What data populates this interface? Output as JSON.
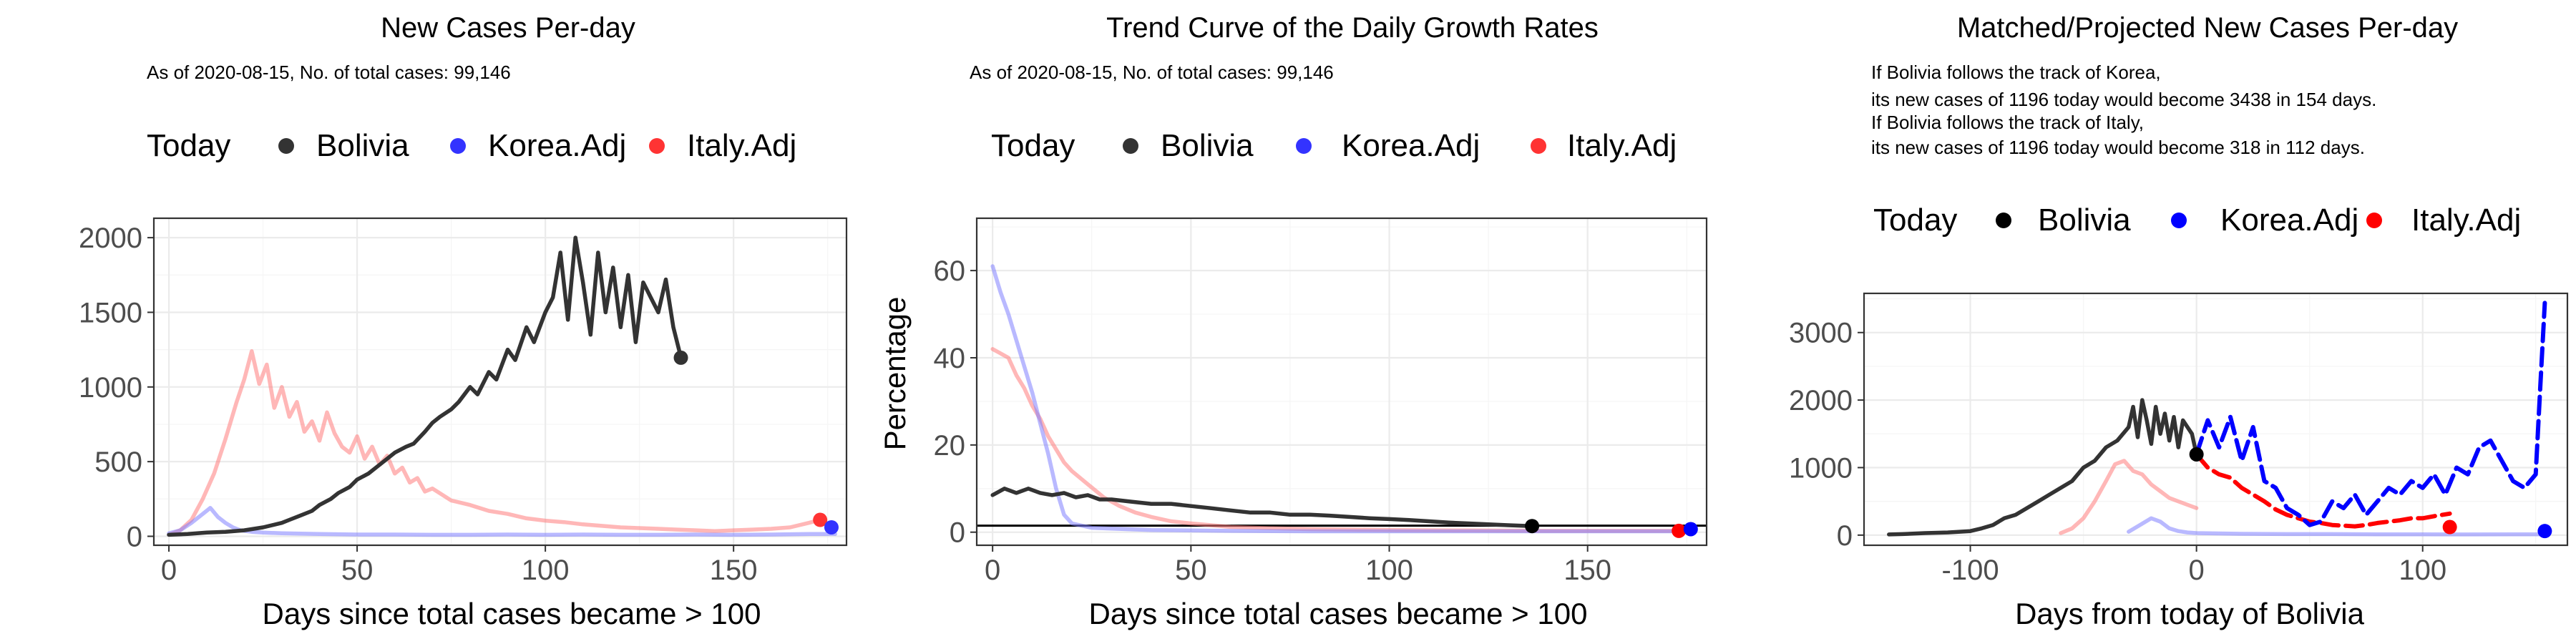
{
  "chart_data": [
    {
      "type": "line",
      "title": "New Cases Per-day",
      "subtitle": "As of 2020-08-15, No. of total cases: 99,146",
      "xlabel": "Days since total cases became > 100",
      "ylabel": "",
      "xlim": [
        -4,
        180
      ],
      "ylim": [
        -60,
        2130
      ],
      "xticks": [
        0,
        50,
        100,
        150
      ],
      "xtick_labels": [
        "0",
        "50",
        "100",
        "150"
      ],
      "yticks": [
        0,
        500,
        1000,
        1500,
        2000
      ],
      "ytick_labels": [
        "0",
        "500",
        "1000",
        "1500",
        "2000"
      ],
      "grid": true,
      "legend": {
        "position": "top",
        "title": "Today",
        "entries": [
          {
            "label": "Bolivia",
            "color": "#333333"
          },
          {
            "label": "Korea.Adj",
            "color": "#3333ff"
          },
          {
            "label": "Italy.Adj",
            "color": "#ff3333"
          }
        ]
      },
      "series": [
        {
          "name": "Italy.Adj",
          "color": "#ff7b7b",
          "opacity": 0.55,
          "x": [
            0,
            3,
            6,
            9,
            12,
            15,
            18,
            20,
            22,
            24,
            26,
            28,
            30,
            32,
            34,
            36,
            38,
            40,
            42,
            44,
            46,
            48,
            50,
            52,
            54,
            56,
            58,
            60,
            62,
            64,
            66,
            68,
            70,
            75,
            80,
            85,
            90,
            95,
            100,
            105,
            110,
            115,
            120,
            125,
            130,
            135,
            140,
            145,
            150,
            155,
            160,
            165,
            170,
            173
          ],
          "y": [
            10,
            40,
            110,
            250,
            420,
            650,
            900,
            1050,
            1240,
            1020,
            1150,
            860,
            1000,
            800,
            900,
            700,
            770,
            640,
            830,
            690,
            600,
            560,
            670,
            520,
            600,
            480,
            540,
            420,
            460,
            360,
            390,
            300,
            320,
            240,
            210,
            170,
            150,
            120,
            105,
            95,
            80,
            70,
            60,
            55,
            50,
            45,
            40,
            35,
            40,
            45,
            50,
            60,
            90,
            110
          ]
        },
        {
          "name": "Korea.Adj",
          "color": "#8080ff",
          "opacity": 0.55,
          "x": [
            0,
            3,
            6,
            9,
            11,
            13,
            15,
            17,
            19,
            22,
            25,
            30,
            40,
            50,
            60,
            70,
            80,
            90,
            100,
            110,
            120,
            130,
            140,
            150,
            160,
            170,
            177
          ],
          "y": [
            20,
            40,
            90,
            150,
            190,
            130,
            90,
            60,
            40,
            30,
            25,
            20,
            15,
            12,
            12,
            10,
            10,
            12,
            10,
            12,
            10,
            10,
            12,
            10,
            12,
            15,
            15
          ]
        },
        {
          "name": "Bolivia",
          "color": "#333333",
          "opacity": 1,
          "x": [
            0,
            5,
            10,
            15,
            20,
            25,
            30,
            32,
            35,
            38,
            40,
            43,
            45,
            48,
            50,
            53,
            55,
            58,
            60,
            63,
            65,
            68,
            70,
            72,
            75,
            77,
            80,
            82,
            85,
            87,
            90,
            92,
            95,
            97,
            100,
            102,
            104,
            106,
            108,
            110,
            112,
            114,
            116,
            118,
            120,
            122,
            124,
            126,
            128,
            130,
            132,
            134,
            136
          ],
          "y": [
            10,
            15,
            25,
            30,
            40,
            60,
            90,
            110,
            140,
            170,
            210,
            250,
            290,
            330,
            380,
            420,
            460,
            520,
            560,
            600,
            620,
            700,
            760,
            800,
            850,
            900,
            1000,
            950,
            1100,
            1050,
            1250,
            1180,
            1400,
            1300,
            1500,
            1600,
            1900,
            1450,
            2000,
            1700,
            1350,
            1900,
            1500,
            1800,
            1400,
            1750,
            1300,
            1700,
            1600,
            1500,
            1720,
            1400,
            1200
          ]
        }
      ],
      "today_points": [
        {
          "name": "Bolivia",
          "x": 136,
          "y": 1196,
          "color": "#333333"
        },
        {
          "name": "Italy.Adj",
          "x": 173,
          "y": 110,
          "color": "#ff3333"
        },
        {
          "name": "Korea.Adj",
          "x": 176,
          "y": 60,
          "color": "#3333ff"
        }
      ]
    },
    {
      "type": "line",
      "title": "Trend Curve of the Daily Growth Rates",
      "subtitle": "As of 2020-08-15, No. of total cases: 99,146",
      "xlabel": "Days since total cases became > 100",
      "ylabel": "Percentage",
      "xlim": [
        -4,
        180
      ],
      "ylim": [
        -3,
        72
      ],
      "xticks": [
        0,
        50,
        100,
        150
      ],
      "xtick_labels": [
        "0",
        "50",
        "100",
        "150"
      ],
      "yticks": [
        0,
        20,
        40,
        60
      ],
      "ytick_labels": [
        "0",
        "20",
        "40",
        "60"
      ],
      "grid": true,
      "hline": 1.5,
      "legend": {
        "position": "top",
        "title": "Today",
        "entries": [
          {
            "label": "Bolivia",
            "color": "#333333"
          },
          {
            "label": "Korea.Adj",
            "color": "#3333ff"
          },
          {
            "label": "Italy.Adj",
            "color": "#ff3333"
          }
        ]
      },
      "series": [
        {
          "name": "Italy.Adj",
          "color": "#ff7b7b",
          "opacity": 0.55,
          "x": [
            0,
            2,
            4,
            6,
            8,
            10,
            12,
            14,
            16,
            18,
            20,
            24,
            28,
            32,
            36,
            40,
            45,
            50,
            60,
            70,
            80,
            100,
            120,
            140,
            160,
            173
          ],
          "y": [
            42,
            41,
            40,
            36,
            33,
            29,
            26,
            22,
            19,
            16,
            14,
            11,
            8,
            6,
            4.5,
            3.5,
            2.5,
            2,
            1.2,
            0.9,
            0.7,
            0.5,
            0.4,
            0.3,
            0.3,
            0.3
          ]
        },
        {
          "name": "Korea.Adj",
          "color": "#8080ff",
          "opacity": 0.55,
          "x": [
            0,
            2,
            4,
            6,
            8,
            10,
            12,
            14,
            16,
            18,
            20,
            25,
            30,
            40,
            60,
            80,
            100,
            120,
            140,
            160,
            177
          ],
          "y": [
            61,
            55,
            50,
            44,
            38,
            32,
            25,
            18,
            10,
            4,
            2,
            1,
            0.8,
            0.5,
            0.3,
            0.2,
            0.2,
            0.2,
            0.2,
            0.2,
            0.2
          ]
        },
        {
          "name": "Bolivia",
          "color": "#333333",
          "opacity": 1,
          "x": [
            0,
            3,
            6,
            9,
            12,
            15,
            18,
            21,
            24,
            27,
            30,
            35,
            40,
            45,
            50,
            55,
            60,
            65,
            70,
            75,
            80,
            85,
            90,
            95,
            100,
            105,
            110,
            115,
            120,
            125,
            130,
            136
          ],
          "y": [
            8.5,
            10,
            9,
            10,
            9,
            8.5,
            9,
            8,
            8.5,
            7.5,
            7.5,
            7,
            6.5,
            6.5,
            6,
            5.5,
            5,
            4.5,
            4.5,
            4,
            4,
            3.8,
            3.5,
            3.2,
            3,
            2.8,
            2.5,
            2.2,
            2,
            1.8,
            1.6,
            1.4
          ]
        }
      ],
      "today_points": [
        {
          "name": "Bolivia",
          "x": 136,
          "y": 1.4,
          "color": "#000000"
        },
        {
          "name": "Italy.Adj",
          "x": 173,
          "y": 0.3,
          "color": "#ff0000"
        },
        {
          "name": "Korea.Adj",
          "x": 176,
          "y": 0.7,
          "color": "#0000ff"
        }
      ]
    },
    {
      "type": "line",
      "title": "Matched/Projected New Cases Per-day",
      "notes": [
        "If Bolivia follows the track of Korea,",
        "its new cases of 1196 today would become 3438 in 154 days.",
        "If Bolivia follows the track of Italy,",
        "its new cases of 1196 today would become 318 in 112 days."
      ],
      "xlabel": "Days from today of Bolivia",
      "ylabel": "",
      "xlim": [
        -147,
        164
      ],
      "ylim": [
        -150,
        3580
      ],
      "xticks": [
        -100,
        0,
        100
      ],
      "xtick_labels": [
        "-100",
        "0",
        "100"
      ],
      "yticks": [
        0,
        1000,
        2000,
        3000
      ],
      "ytick_labels": [
        "0",
        "1000",
        "2000",
        "3000"
      ],
      "grid": true,
      "legend": {
        "position": "top",
        "title": "Today",
        "entries": [
          {
            "label": "Bolivia",
            "color": "#000000"
          },
          {
            "label": "Korea.Adj",
            "color": "#0000ff"
          },
          {
            "label": "Italy.Adj",
            "color": "#ff0000"
          }
        ]
      },
      "series": [
        {
          "name": "Italy.Adj",
          "style": "faded",
          "color": "#ff7b7b",
          "opacity": 0.55,
          "x": [
            -60,
            -55,
            -50,
            -45,
            -40,
            -36,
            -32,
            -28,
            -24,
            -20,
            -16,
            -12,
            -8,
            -4,
            0
          ],
          "y": [
            30,
            100,
            250,
            500,
            800,
            1050,
            1100,
            950,
            900,
            750,
            650,
            550,
            500,
            450,
            400
          ]
        },
        {
          "name": "Korea.Adj",
          "style": "faded",
          "color": "#8080ff",
          "opacity": 0.55,
          "x": [
            -30,
            -25,
            -20,
            -16,
            -12,
            -8,
            -4,
            0,
            20,
            40,
            60,
            80,
            100,
            120,
            140,
            152
          ],
          "y": [
            50,
            150,
            250,
            200,
            100,
            60,
            40,
            30,
            20,
            15,
            15,
            12,
            12,
            10,
            12,
            12
          ]
        },
        {
          "name": "Bolivia",
          "style": "solid",
          "color": "#333333",
          "opacity": 1,
          "x": [
            -136,
            -130,
            -120,
            -110,
            -100,
            -95,
            -90,
            -85,
            -80,
            -75,
            -70,
            -65,
            -60,
            -55,
            -50,
            -45,
            -40,
            -35,
            -30,
            -28,
            -26,
            -24,
            -22,
            -20,
            -18,
            -16,
            -14,
            -12,
            -10,
            -8,
            -6,
            -4,
            -2,
            0
          ],
          "y": [
            10,
            15,
            30,
            40,
            60,
            100,
            150,
            250,
            300,
            400,
            500,
            600,
            700,
            800,
            1000,
            1100,
            1300,
            1400,
            1600,
            1900,
            1450,
            2000,
            1700,
            1350,
            1900,
            1500,
            1800,
            1400,
            1750,
            1300,
            1700,
            1600,
            1500,
            1196
          ]
        },
        {
          "name": "Italy.Adj",
          "style": "dashed",
          "color": "#ff0000",
          "opacity": 1,
          "x": [
            0,
            5,
            10,
            15,
            20,
            25,
            30,
            35,
            40,
            45,
            50,
            55,
            60,
            65,
            70,
            75,
            80,
            85,
            90,
            95,
            100,
            105,
            112
          ],
          "y": [
            1196,
            1000,
            900,
            850,
            700,
            600,
            500,
            380,
            300,
            250,
            200,
            180,
            150,
            140,
            130,
            150,
            180,
            200,
            220,
            250,
            250,
            280,
            318
          ]
        },
        {
          "name": "Korea.Adj",
          "style": "dashed",
          "color": "#0000ff",
          "opacity": 1,
          "x": [
            0,
            5,
            10,
            15,
            20,
            25,
            30,
            35,
            40,
            45,
            50,
            55,
            60,
            65,
            70,
            75,
            80,
            85,
            90,
            95,
            100,
            105,
            110,
            115,
            120,
            125,
            130,
            135,
            140,
            145,
            150,
            152,
            154
          ],
          "y": [
            1196,
            1700,
            1300,
            1750,
            1100,
            1600,
            800,
            700,
            400,
            300,
            150,
            200,
            500,
            400,
            600,
            300,
            500,
            700,
            600,
            800,
            700,
            900,
            600,
            1000,
            900,
            1300,
            1400,
            1100,
            800,
            700,
            900,
            2200,
            3438
          ]
        }
      ],
      "today_points": [
        {
          "name": "Bolivia",
          "x": 0,
          "y": 1196,
          "color": "#000000"
        },
        {
          "name": "Italy.Adj",
          "x": 112,
          "y": 120,
          "color": "#ff0000"
        },
        {
          "name": "Korea.Adj",
          "x": 154,
          "y": 60,
          "color": "#0000ff"
        }
      ]
    }
  ]
}
